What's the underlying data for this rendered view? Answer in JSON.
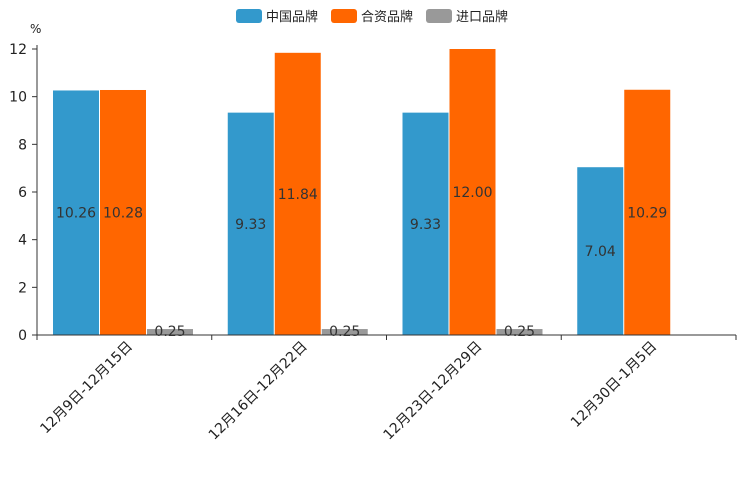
{
  "chart_data": {
    "type": "bar",
    "unit": "%",
    "categories": [
      "12月9日-12月15日",
      "12月16日-12月22日",
      "12月23日-12月29日",
      "12月30日-1月5日"
    ],
    "series": [
      {
        "name": "中国品牌",
        "color": "#3399cc",
        "values": [
          10.26,
          9.33,
          9.33,
          7.04
        ],
        "labels": [
          "10.26",
          "9.33",
          "9.33",
          "7.04"
        ]
      },
      {
        "name": "合资品牌",
        "color": "#ff6600",
        "values": [
          10.28,
          11.84,
          12.0,
          10.29
        ],
        "labels": [
          "10.28",
          "11.84",
          "12.00",
          "10.29"
        ]
      },
      {
        "name": "进口品牌",
        "color": "#999999",
        "values": [
          0.25,
          0.25,
          0.25,
          null
        ],
        "labels": [
          "0.25",
          "0.25",
          "0.25",
          null
        ]
      }
    ],
    "ylim": [
      0,
      12
    ],
    "yticks": [
      "0",
      "2",
      "4",
      "6",
      "8",
      "10",
      "12"
    ],
    "legend_position": "top-center",
    "title": "",
    "xlabel": "",
    "ylabel": "%"
  }
}
